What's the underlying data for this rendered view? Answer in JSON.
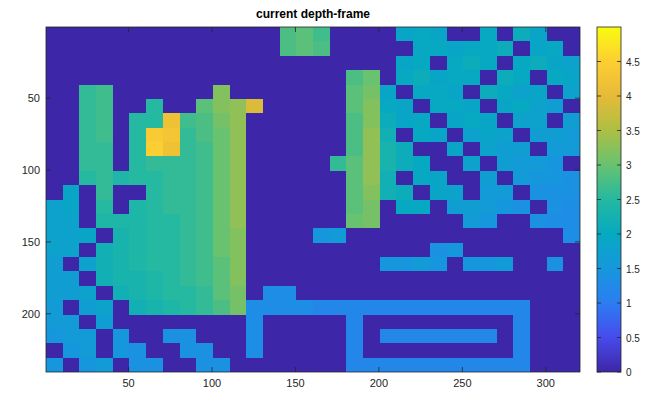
{
  "chart_data": {
    "type": "heatmap",
    "title": "current depth-frame",
    "xlim": [
      0.5,
      320.5
    ],
    "ylim": [
      240.5,
      0.5
    ],
    "xticks": [
      50,
      100,
      150,
      200,
      250,
      300
    ],
    "yticks": [
      50,
      100,
      150,
      200
    ],
    "colorbar": {
      "range": [
        0,
        5
      ],
      "ticks": [
        0,
        0.5,
        1,
        1.5,
        2,
        2.5,
        3,
        3.5,
        4,
        4.5
      ]
    },
    "cells": [
      [
        0,
        0,
        0,
        0,
        0,
        0,
        0,
        0,
        0,
        0,
        0,
        0,
        0,
        0,
        2.8,
        2.9,
        2.7,
        0,
        0,
        0,
        0,
        1.9,
        2.0,
        1.9,
        0,
        0,
        2.0,
        0,
        2.1,
        1.9,
        0,
        0
      ],
      [
        0,
        0,
        0,
        0,
        0,
        0,
        0,
        0,
        0,
        0,
        0,
        0,
        0,
        0,
        2.8,
        2.9,
        2.8,
        0,
        0,
        0,
        0,
        0,
        2.0,
        2.0,
        1.9,
        2.0,
        2.0,
        2.1,
        0,
        1.9,
        2.0,
        0
      ],
      [
        0,
        0,
        0,
        0,
        0,
        0,
        0,
        0,
        0,
        0,
        0,
        0,
        0,
        0,
        0,
        0,
        0,
        0,
        0,
        0,
        0,
        1.9,
        2.0,
        0,
        2.0,
        2.1,
        2.0,
        0,
        2.0,
        2.1,
        1.9,
        1.8
      ],
      [
        0,
        0,
        0,
        0,
        0,
        0,
        0,
        0,
        0,
        0,
        0,
        0,
        0,
        0,
        0,
        0,
        0,
        0,
        2.8,
        3.0,
        0,
        2.0,
        2.1,
        1.9,
        2.0,
        2.0,
        0,
        2.1,
        2.0,
        0,
        2.0,
        1.9
      ],
      [
        0,
        0,
        2.6,
        2.7,
        0,
        0,
        0,
        0,
        0,
        0,
        3.2,
        0,
        0,
        0,
        0,
        0,
        0,
        0,
        2.9,
        3.1,
        1.9,
        0,
        2.0,
        2.0,
        1.9,
        0,
        2.1,
        2.0,
        1.8,
        1.9,
        0,
        1.8
      ],
      [
        0,
        0,
        2.6,
        2.7,
        0,
        0,
        2.5,
        0,
        0,
        2.9,
        3.2,
        3.3,
        3.9,
        0,
        0,
        0,
        0,
        0,
        2.9,
        3.2,
        2.0,
        1.9,
        0,
        2.0,
        2.0,
        1.9,
        0,
        1.9,
        2.0,
        1.8,
        1.7,
        0
      ],
      [
        0,
        0,
        2.6,
        2.7,
        0,
        2.5,
        2.5,
        4.2,
        2.7,
        2.8,
        3.1,
        3.3,
        0,
        0,
        0,
        0,
        0,
        0,
        2.8,
        3.2,
        2.1,
        1.9,
        2.0,
        0,
        1.9,
        2.0,
        1.9,
        0,
        1.8,
        1.8,
        0,
        1.7
      ],
      [
        0,
        0,
        2.6,
        2.7,
        0,
        2.5,
        4.4,
        4.3,
        2.6,
        2.8,
        3.0,
        3.3,
        0,
        0,
        0,
        0,
        0,
        0,
        2.8,
        3.3,
        2.2,
        0,
        2.0,
        1.9,
        0,
        1.8,
        1.9,
        1.8,
        0,
        1.7,
        1.7,
        1.6
      ],
      [
        0,
        0,
        2.6,
        2.6,
        0,
        2.5,
        4.5,
        4.2,
        2.6,
        2.7,
        3.0,
        3.3,
        0,
        0,
        0,
        0,
        0,
        0,
        2.8,
        3.3,
        2.3,
        2.1,
        0,
        0,
        1.9,
        0,
        1.8,
        1.7,
        1.7,
        0,
        1.6,
        1.6
      ],
      [
        0,
        0,
        2.6,
        2.6,
        0,
        2.5,
        2.6,
        2.6,
        2.6,
        2.7,
        3.0,
        3.3,
        0,
        0,
        0,
        0,
        0,
        2.6,
        2.9,
        3.3,
        2.3,
        2.1,
        2.0,
        0,
        0,
        1.8,
        0,
        1.7,
        1.6,
        1.6,
        1.5,
        0
      ],
      [
        0,
        0,
        2.5,
        2.6,
        2.4,
        2.5,
        2.5,
        2.6,
        2.6,
        2.7,
        3.0,
        3.3,
        0,
        0,
        0,
        0,
        0,
        0,
        2.9,
        3.3,
        2.2,
        0,
        2.0,
        1.9,
        0,
        0,
        1.7,
        0,
        1.6,
        1.5,
        1.5,
        1.4
      ],
      [
        0,
        1.9,
        0,
        2.6,
        0,
        0,
        2.5,
        2.6,
        2.6,
        2.7,
        3.0,
        3.3,
        0,
        0,
        0,
        0,
        0,
        0,
        2.9,
        3.2,
        2.2,
        2.1,
        0,
        1.9,
        1.8,
        0,
        1.6,
        1.6,
        0,
        1.4,
        1.4,
        1.4
      ],
      [
        1.8,
        1.9,
        0,
        2.5,
        0,
        2.4,
        2.5,
        2.6,
        2.6,
        2.7,
        3.0,
        3.3,
        0,
        0,
        0,
        0,
        0,
        0,
        2.9,
        3.1,
        0,
        2.0,
        2.0,
        0,
        1.7,
        1.7,
        1.6,
        1.5,
        1.4,
        0,
        1.4,
        1.3
      ],
      [
        1.8,
        1.8,
        0,
        2.4,
        2.4,
        2.4,
        2.5,
        2.5,
        2.6,
        2.7,
        3.0,
        3.3,
        0,
        0,
        0,
        0,
        0,
        0,
        3.0,
        3.1,
        0,
        0,
        0,
        0,
        0,
        1.6,
        1.5,
        0,
        0,
        1.4,
        1.3,
        1.3
      ],
      [
        1.8,
        1.8,
        1.9,
        0,
        2.3,
        2.4,
        2.5,
        2.5,
        2.6,
        2.7,
        3.0,
        3.2,
        0,
        0,
        0,
        0,
        1.5,
        1.6,
        0,
        0,
        0,
        0,
        0,
        0,
        0,
        0,
        0,
        0,
        0,
        0,
        0,
        1.3
      ],
      [
        1.8,
        1.8,
        0,
        2.2,
        2.3,
        2.4,
        2.5,
        2.5,
        2.6,
        2.7,
        3.0,
        3.2,
        0,
        0,
        0,
        0,
        0,
        0,
        0,
        0,
        0,
        0,
        0,
        1.4,
        1.5,
        0,
        0,
        0,
        0,
        0,
        0,
        0
      ],
      [
        1.7,
        0,
        1.8,
        2.2,
        2.3,
        2.4,
        2.5,
        2.5,
        2.6,
        2.7,
        2.9,
        3.2,
        0,
        0,
        0,
        0,
        0,
        0,
        0,
        0,
        1.5,
        1.5,
        1.6,
        1.5,
        0,
        1.5,
        1.5,
        1.6,
        0,
        0,
        1.4,
        0
      ],
      [
        1.7,
        1.7,
        0,
        2.2,
        2.3,
        2.3,
        2.4,
        2.5,
        2.6,
        2.7,
        2.9,
        3.2,
        0,
        0,
        0,
        0,
        0,
        0,
        0,
        0,
        0,
        0,
        0,
        0,
        0,
        0,
        0,
        0,
        0,
        0,
        0,
        0
      ],
      [
        1.7,
        1.7,
        1.8,
        0,
        2.2,
        2.3,
        2.4,
        2.5,
        2.5,
        2.6,
        2.9,
        3.1,
        0,
        1.3,
        1.3,
        0,
        0,
        0,
        0,
        0,
        0,
        0,
        0,
        0,
        0,
        0,
        0,
        0,
        0,
        0,
        0,
        0
      ],
      [
        1.6,
        0,
        1.7,
        1.8,
        0,
        2.2,
        2.3,
        2.4,
        2.5,
        2.6,
        2.8,
        3.1,
        1.3,
        1.3,
        1.3,
        1.3,
        1.2,
        1.2,
        1.2,
        1.2,
        1.2,
        1.2,
        1.2,
        1.2,
        1.2,
        1.2,
        1.2,
        1.2,
        1.2,
        0,
        0,
        0
      ],
      [
        1.6,
        1.6,
        0,
        1.7,
        0,
        0,
        0,
        0,
        0,
        0,
        0,
        0,
        1.3,
        0,
        0,
        0,
        0,
        0,
        1.2,
        0,
        0,
        0,
        0,
        0,
        0,
        0,
        0,
        0,
        1.2,
        0,
        0,
        0
      ],
      [
        1.5,
        1.6,
        1.6,
        0,
        1.5,
        0,
        0,
        1.4,
        1.4,
        0,
        0,
        0,
        1.3,
        0,
        0,
        0,
        0,
        0,
        1.2,
        0,
        1.2,
        1.2,
        1.2,
        1.2,
        1.2,
        1.2,
        1.2,
        0,
        1.2,
        0,
        0,
        0
      ],
      [
        0,
        1.5,
        1.6,
        0,
        1.5,
        1.4,
        0,
        0,
        1.4,
        1.4,
        0,
        0,
        1.3,
        0,
        0,
        0,
        0,
        0,
        1.2,
        0,
        0,
        0,
        0,
        0,
        0,
        0,
        0,
        0,
        1.2,
        0,
        0,
        0
      ],
      [
        1.5,
        0,
        1.5,
        1.6,
        0,
        1.4,
        1.4,
        0,
        0,
        1.4,
        1.4,
        0,
        0,
        0,
        0,
        0,
        0,
        0,
        1.2,
        1.2,
        1.2,
        1.2,
        1.2,
        1.2,
        1.2,
        1.2,
        1.2,
        1.2,
        1.2,
        0,
        0,
        0
      ]
    ]
  }
}
